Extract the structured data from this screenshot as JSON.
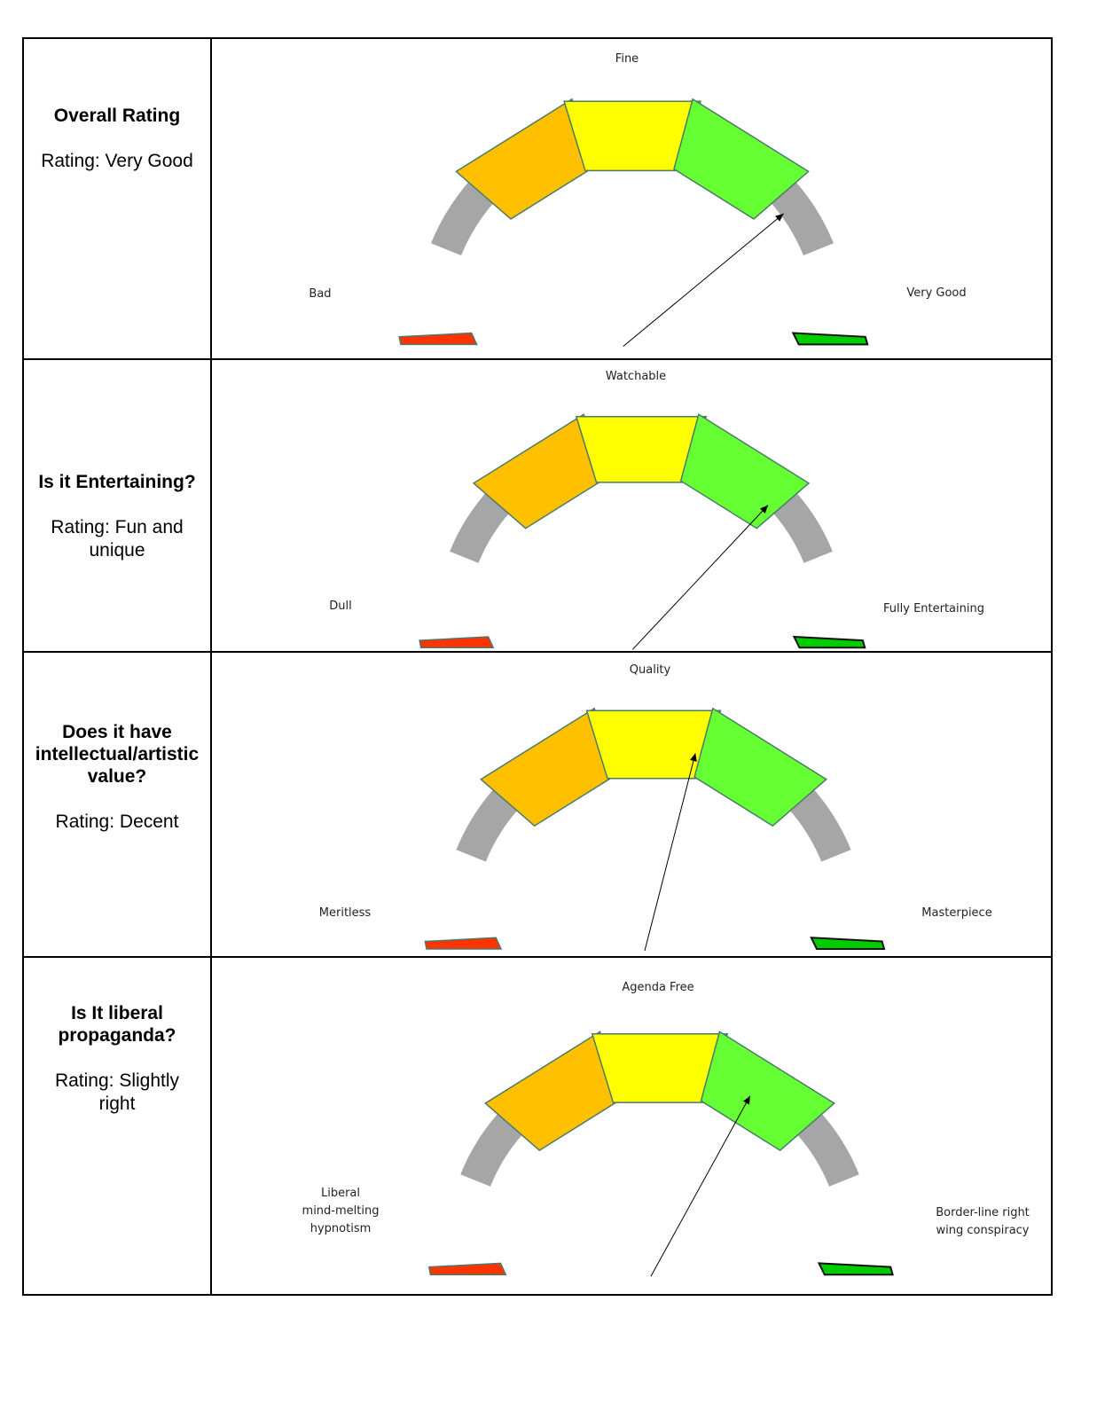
{
  "rows": [
    {
      "question": "Overall Rating",
      "rating": "Rating: Very Good",
      "labels": {
        "left": "Bad",
        "top": "Fine",
        "right": "Very Good"
      },
      "needle": 0.78
    },
    {
      "question": "Is it Entertaining?",
      "rating": "Rating: Fun and unique",
      "labels": {
        "left": "Dull",
        "top": "Watchable",
        "right": "Fully Entertaining"
      },
      "needle": 0.74
    },
    {
      "question": "Does it have intellectual/artistic value?",
      "rating": "Rating: Decent",
      "labels": {
        "left": "Meritless",
        "top": "Quality",
        "right": "Masterpiece"
      },
      "needle": 0.58
    },
    {
      "question": "Is It liberal propaganda?",
      "rating": "Rating: Slightly right",
      "labels": {
        "left": "Liberal\nmind-melting\nhypnotism",
        "top": "Agenda Free",
        "right": "Border-line right\nwing conspiracy"
      },
      "needle": 0.66
    }
  ],
  "segment_colors": [
    "#ff3300",
    "#ffc000",
    "#ffff00",
    "#66ff33",
    "#00cc00"
  ],
  "track_color": "#a6a6a6",
  "needle_color": "#000000"
}
